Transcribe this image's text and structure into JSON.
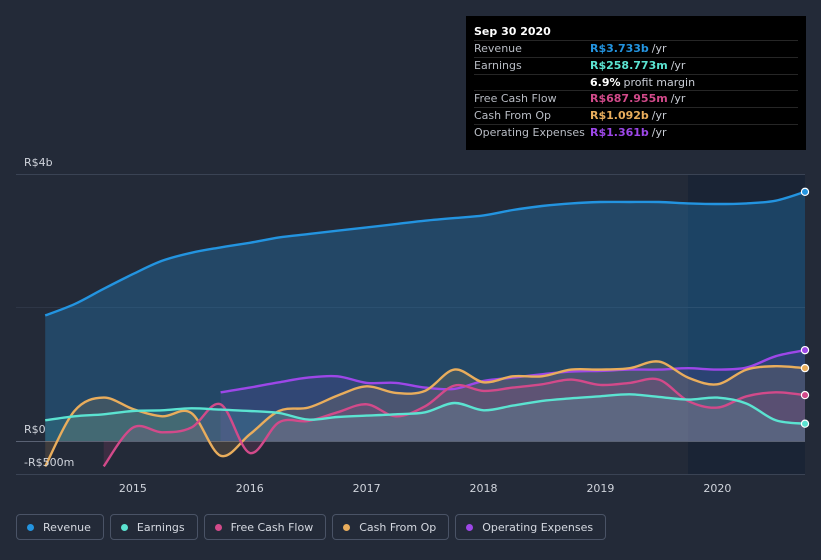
{
  "colors": {
    "background": "#232a38",
    "revenue": "#2394e0",
    "earnings": "#5be3d1",
    "free_cash_flow": "#d24a8a",
    "cash_from_op": "#e9ad5c",
    "operating_expenses": "#9d47e8"
  },
  "tooltip": {
    "date": "Sep 30 2020",
    "rows": [
      {
        "label": "Revenue",
        "value": "R$3.733b",
        "unit": "/yr",
        "color": "#2394e0"
      },
      {
        "label": "Earnings",
        "value": "R$258.773m",
        "unit": "/yr",
        "color": "#5be3d1"
      },
      {
        "label": "",
        "value": "6.9%",
        "unit": "profit margin",
        "color": "#ffffff"
      },
      {
        "label": "Free Cash Flow",
        "value": "R$687.955m",
        "unit": "/yr",
        "color": "#d24a8a"
      },
      {
        "label": "Cash From Op",
        "value": "R$1.092b",
        "unit": "/yr",
        "color": "#e9ad5c"
      },
      {
        "label": "Operating Expenses",
        "value": "R$1.361b",
        "unit": "/yr",
        "color": "#9d47e8"
      }
    ]
  },
  "legend": [
    {
      "label": "Revenue",
      "color": "#2394e0",
      "icon": "revenue-dot-icon"
    },
    {
      "label": "Earnings",
      "color": "#5be3d1",
      "icon": "earnings-dot-icon"
    },
    {
      "label": "Free Cash Flow",
      "color": "#d24a8a",
      "icon": "free-cash-flow-dot-icon"
    },
    {
      "label": "Cash From Op",
      "color": "#e9ad5c",
      "icon": "cash-from-op-dot-icon"
    },
    {
      "label": "Operating Expenses",
      "color": "#9d47e8",
      "icon": "operating-expenses-dot-icon"
    }
  ],
  "chart_data": {
    "type": "area",
    "title": "",
    "xlabel": "",
    "ylabel": "",
    "unit": "R$ billions",
    "y_tick_labels": [
      {
        "value": 4,
        "label": "R$4b"
      },
      {
        "value": 0,
        "label": "R$0"
      },
      {
        "value": -0.5,
        "label": "-R$500m"
      }
    ],
    "x_tick_labels": [
      "2015",
      "2016",
      "2017",
      "2018",
      "2019",
      "2020"
    ],
    "x_ticks": [
      2015,
      2016,
      2017,
      2018,
      2019,
      2020
    ],
    "xlim": [
      2014.0,
      2020.75
    ],
    "ylim": [
      -0.5,
      4.0
    ],
    "forecast_shade_start": 2019.75,
    "series": [
      {
        "name": "Revenue",
        "key": "revenue",
        "x": [
          2014.25,
          2014.5,
          2014.75,
          2015.0,
          2015.25,
          2015.5,
          2015.75,
          2016.0,
          2016.25,
          2016.5,
          2016.75,
          2017.0,
          2017.25,
          2017.5,
          2017.75,
          2018.0,
          2018.25,
          2018.5,
          2018.75,
          2019.0,
          2019.25,
          2019.5,
          2019.75,
          2020.0,
          2020.25,
          2020.5,
          2020.75
        ],
        "values": [
          1.88,
          2.05,
          2.28,
          2.5,
          2.7,
          2.82,
          2.9,
          2.97,
          3.05,
          3.1,
          3.15,
          3.2,
          3.25,
          3.3,
          3.34,
          3.38,
          3.46,
          3.52,
          3.56,
          3.58,
          3.58,
          3.58,
          3.56,
          3.55,
          3.56,
          3.6,
          3.733
        ]
      },
      {
        "name": "Earnings",
        "key": "earnings",
        "x": [
          2014.25,
          2014.5,
          2014.75,
          2015.0,
          2015.25,
          2015.5,
          2015.75,
          2016.0,
          2016.25,
          2016.5,
          2016.75,
          2017.0,
          2017.25,
          2017.5,
          2017.75,
          2018.0,
          2018.25,
          2018.5,
          2018.75,
          2019.0,
          2019.25,
          2019.5,
          2019.75,
          2020.0,
          2020.25,
          2020.5,
          2020.75
        ],
        "values": [
          0.31,
          0.37,
          0.4,
          0.45,
          0.46,
          0.49,
          0.47,
          0.45,
          0.42,
          0.32,
          0.36,
          0.38,
          0.4,
          0.43,
          0.57,
          0.46,
          0.53,
          0.6,
          0.64,
          0.67,
          0.7,
          0.66,
          0.62,
          0.65,
          0.56,
          0.31,
          0.259
        ]
      },
      {
        "name": "Free Cash Flow",
        "key": "free_cash_flow",
        "x": [
          2014.75,
          2015.0,
          2015.25,
          2015.5,
          2015.75,
          2016.0,
          2016.25,
          2016.5,
          2016.75,
          2017.0,
          2017.25,
          2017.5,
          2017.75,
          2018.0,
          2018.25,
          2018.5,
          2018.75,
          2019.0,
          2019.25,
          2019.5,
          2019.75,
          2020.0,
          2020.25,
          2020.5,
          2020.75
        ],
        "values": [
          -0.38,
          0.2,
          0.13,
          0.2,
          0.55,
          -0.18,
          0.28,
          0.3,
          0.43,
          0.55,
          0.37,
          0.52,
          0.83,
          0.75,
          0.8,
          0.85,
          0.92,
          0.84,
          0.87,
          0.92,
          0.6,
          0.5,
          0.67,
          0.73,
          0.688
        ]
      },
      {
        "name": "Cash From Op",
        "key": "cash_from_op",
        "x": [
          2014.25,
          2014.5,
          2014.75,
          2015.0,
          2015.25,
          2015.5,
          2015.75,
          2016.0,
          2016.25,
          2016.5,
          2016.75,
          2017.0,
          2017.25,
          2017.5,
          2017.75,
          2018.0,
          2018.25,
          2018.5,
          2018.75,
          2019.0,
          2019.25,
          2019.5,
          2019.75,
          2020.0,
          2020.25,
          2020.5,
          2020.75
        ],
        "values": [
          -0.38,
          0.45,
          0.65,
          0.48,
          0.37,
          0.42,
          -0.22,
          0.1,
          0.45,
          0.5,
          0.68,
          0.82,
          0.72,
          0.75,
          1.07,
          0.88,
          0.97,
          0.97,
          1.07,
          1.07,
          1.09,
          1.19,
          0.95,
          0.85,
          1.07,
          1.12,
          1.092
        ]
      },
      {
        "name": "Operating Expenses",
        "key": "operating_expenses",
        "x": [
          2015.75,
          2016.0,
          2016.25,
          2016.5,
          2016.75,
          2017.0,
          2017.25,
          2017.5,
          2017.75,
          2018.0,
          2018.25,
          2018.5,
          2018.75,
          2019.0,
          2019.25,
          2019.5,
          2019.75,
          2020.0,
          2020.25,
          2020.5,
          2020.75
        ],
        "values": [
          0.73,
          0.8,
          0.88,
          0.95,
          0.97,
          0.87,
          0.87,
          0.8,
          0.78,
          0.9,
          0.95,
          1.0,
          1.04,
          1.05,
          1.07,
          1.07,
          1.09,
          1.07,
          1.1,
          1.27,
          1.361
        ]
      }
    ]
  }
}
